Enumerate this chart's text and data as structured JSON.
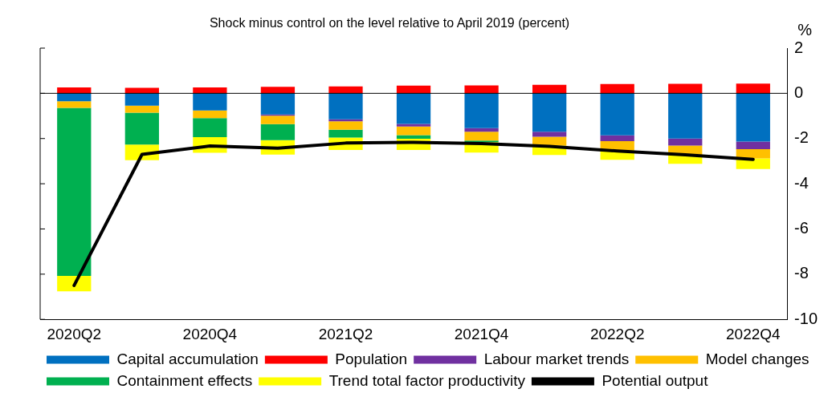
{
  "chart_data": {
    "type": "bar",
    "stacked": true,
    "title": "Shock minus control on the level relative to April 2019 (percent)",
    "ylabel": "%",
    "categories": [
      "2020Q2",
      null,
      "2020Q4",
      null,
      "2021Q2",
      null,
      "2021Q4",
      null,
      "2022Q2",
      null,
      "2022Q4"
    ],
    "series": [
      {
        "name": "Capital accumulation",
        "color": "#0070c0",
        "values": [
          -0.35,
          -0.55,
          -0.76,
          -0.94,
          -1.15,
          -1.35,
          -1.54,
          -1.7,
          -1.86,
          -2.0,
          -2.13
        ]
      },
      {
        "name": "Population",
        "color": "#ff0000",
        "values": [
          0.26,
          0.24,
          0.26,
          0.29,
          0.31,
          0.34,
          0.35,
          0.38,
          0.41,
          0.42,
          0.43
        ]
      },
      {
        "name": "Labour market trends",
        "color": "#7030a0",
        "values": [
          0,
          0,
          0,
          -0.05,
          -0.09,
          -0.12,
          -0.16,
          -0.22,
          -0.26,
          -0.31,
          -0.34
        ]
      },
      {
        "name": "Model changes",
        "color": "#ffc000",
        "values": [
          -0.29,
          -0.31,
          -0.34,
          -0.37,
          -0.37,
          -0.38,
          -0.39,
          -0.39,
          -0.39,
          -0.43,
          -0.41
        ]
      },
      {
        "name": "Containment effects",
        "color": "#00b050",
        "values": [
          -7.44,
          -1.41,
          -0.84,
          -0.71,
          -0.35,
          -0.16,
          -0.07,
          0,
          0,
          0,
          0
        ]
      },
      {
        "name": "Trend total factor productivity",
        "color": "#ffff00",
        "values": [
          -0.68,
          -0.69,
          -0.69,
          -0.64,
          -0.55,
          -0.5,
          -0.46,
          -0.42,
          -0.43,
          -0.38,
          -0.47
        ]
      },
      {
        "name": "Potential output",
        "type": "line",
        "color": "#000000",
        "values": [
          -8.5,
          -2.7,
          -2.33,
          -2.43,
          -2.2,
          -2.17,
          -2.22,
          -2.35,
          -2.55,
          -2.72,
          -2.92
        ]
      }
    ],
    "ylim": [
      -10,
      2
    ],
    "yticks": [
      -10,
      -8,
      -6,
      -4,
      -2,
      0,
      2
    ],
    "grid": false,
    "ref_lines": [
      {
        "axis": "y",
        "value": 0,
        "color": "#000000"
      }
    ],
    "legend": "bottom",
    "marker": "none"
  }
}
